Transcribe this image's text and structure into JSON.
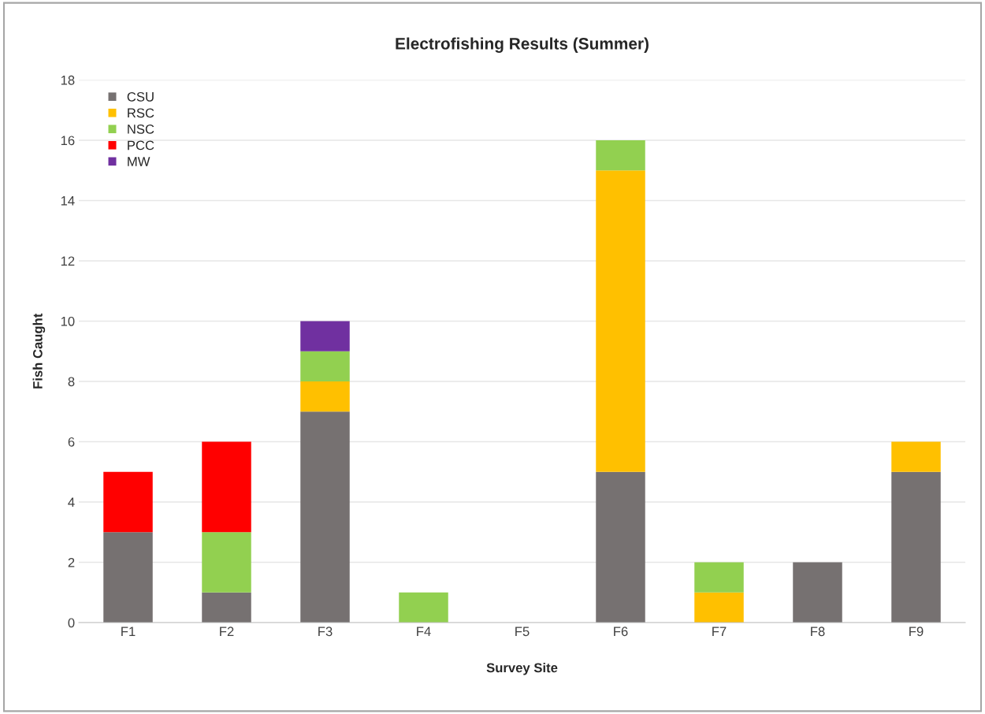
{
  "chart_data": {
    "type": "bar",
    "title": "Electrofishing Results (Summer)",
    "xlabel": "Survey Site",
    "ylabel": "Fish Caught",
    "categories": [
      "F1",
      "F2",
      "F3",
      "F4",
      "F5",
      "F6",
      "F7",
      "F8",
      "F9"
    ],
    "stacked": true,
    "series": [
      {
        "name": "CSU",
        "color": "#767171",
        "values": [
          3,
          1,
          7,
          0,
          0,
          5,
          0,
          2,
          5
        ]
      },
      {
        "name": "RSC",
        "color": "#ffc000",
        "values": [
          0,
          0,
          1,
          0,
          0,
          10,
          1,
          0,
          1
        ]
      },
      {
        "name": "NSC",
        "color": "#92d050",
        "values": [
          0,
          2,
          1,
          1,
          0,
          1,
          1,
          0,
          0
        ]
      },
      {
        "name": "PCC",
        "color": "#ff0000",
        "values": [
          2,
          3,
          0,
          0,
          0,
          0,
          0,
          0,
          0
        ]
      },
      {
        "name": "MW",
        "color": "#7030a0",
        "values": [
          0,
          0,
          1,
          0,
          0,
          0,
          0,
          0,
          0
        ]
      }
    ],
    "ylim": [
      0,
      18
    ],
    "yticks": [
      0,
      2,
      4,
      6,
      8,
      10,
      12,
      14,
      16,
      18
    ],
    "grid": "y",
    "legend": "top left"
  }
}
